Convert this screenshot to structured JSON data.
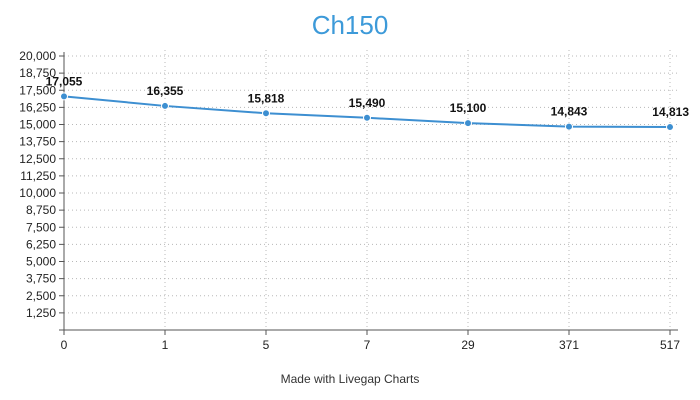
{
  "chart_data": {
    "type": "line",
    "title": "Ch150",
    "xlabel": "",
    "ylabel": "",
    "categories": [
      "0",
      "1",
      "5",
      "7",
      "29",
      "371",
      "517"
    ],
    "series": [
      {
        "values": [
          17055,
          16355,
          15818,
          15490,
          15100,
          14843,
          14813
        ]
      }
    ],
    "data_labels": [
      "17,055",
      "16,355",
      "15,818",
      "15,490",
      "15,100",
      "14,843",
      "14,813"
    ],
    "ylim": [
      0,
      20000
    ],
    "yticks": [
      1250,
      2500,
      3750,
      5000,
      6250,
      7500,
      8750,
      10000,
      11250,
      12500,
      13750,
      15000,
      16250,
      17500,
      18750,
      20000
    ],
    "ytick_labels": [
      "1,250",
      "2,500",
      "3,750",
      "5,000",
      "6,250",
      "7,500",
      "8,750",
      "10,000",
      "11,250",
      "12,500",
      "13,750",
      "15,000",
      "16,250",
      "17,500",
      "18,750",
      "20,000"
    ],
    "grid": true,
    "line_color": "#3d8fd1"
  },
  "footer": "Made with Livegap Charts"
}
